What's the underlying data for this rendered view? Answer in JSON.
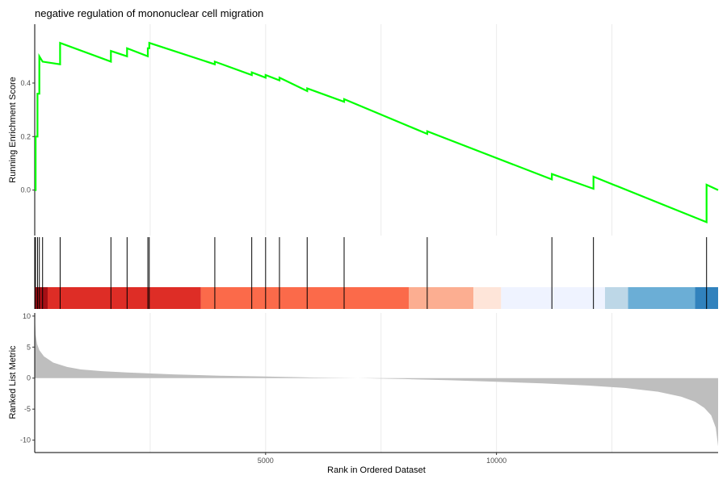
{
  "chart_data": {
    "type": "line",
    "title": "negative regulation of mononuclear cell migration",
    "xlabel": "Rank in Ordered Dataset",
    "xlim": [
      0,
      14800
    ],
    "xticks": [
      5000,
      10000
    ],
    "grid": "vertical gridlines at 2500-step positions",
    "colors": {
      "running_score": "#00ff00",
      "hit_line": "#000000",
      "metric_fill": "#bebebe",
      "grid": "#ebebeb"
    },
    "running_score": {
      "ylabel": "Running Enrichment Score",
      "ylim": [
        -0.17,
        0.62
      ],
      "yticks": [
        0.0,
        0.2,
        0.4
      ],
      "x": [
        0,
        20,
        20,
        60,
        60,
        100,
        100,
        170,
        170,
        550,
        550,
        1650,
        1650,
        2000,
        2000,
        2450,
        2450,
        2480,
        2480,
        3900,
        3900,
        4700,
        4700,
        5000,
        5000,
        5300,
        5300,
        5900,
        5900,
        6700,
        6700,
        8500,
        8500,
        11200,
        11200,
        12100,
        12100,
        14550,
        14550,
        14800
      ],
      "y": [
        0.0,
        0.0,
        0.2,
        0.2,
        0.36,
        0.36,
        0.5,
        0.48,
        0.48,
        0.47,
        0.55,
        0.48,
        0.52,
        0.5,
        0.53,
        0.5,
        0.53,
        0.53,
        0.55,
        0.47,
        0.48,
        0.43,
        0.44,
        0.42,
        0.43,
        0.41,
        0.42,
        0.37,
        0.38,
        0.33,
        0.34,
        0.21,
        0.22,
        0.04,
        0.06,
        0.005,
        0.05,
        -0.12,
        0.02,
        0.0
      ]
    },
    "hits": [
      15,
      60,
      100,
      170,
      550,
      1650,
      2000,
      2450,
      2480,
      3900,
      4700,
      5000,
      5300,
      5900,
      6700,
      8500,
      11200,
      12100,
      14550
    ],
    "rank_bands": [
      {
        "start": 0,
        "end": 280,
        "color": "#a50f15"
      },
      {
        "start": 280,
        "end": 3600,
        "color": "#de2d26"
      },
      {
        "start": 3600,
        "end": 8100,
        "color": "#fb6a4a"
      },
      {
        "start": 8100,
        "end": 9500,
        "color": "#fcae91"
      },
      {
        "start": 9500,
        "end": 10100,
        "color": "#fee5d9"
      },
      {
        "start": 10100,
        "end": 12350,
        "color": "#eff3ff"
      },
      {
        "start": 12350,
        "end": 12850,
        "color": "#bdd7e7"
      },
      {
        "start": 12850,
        "end": 14300,
        "color": "#6baed6"
      },
      {
        "start": 14300,
        "end": 14800,
        "color": "#3182bd"
      }
    ],
    "ranked_metric": {
      "ylabel": "Ranked List Metric",
      "ylim": [
        -12,
        10.5
      ],
      "yticks": [
        10,
        5,
        0,
        -5,
        -10
      ],
      "x": [
        0,
        20,
        50,
        100,
        200,
        400,
        700,
        1000,
        1500,
        2000,
        3000,
        4000,
        5000,
        6000,
        7000,
        8000,
        9000,
        10000,
        11000,
        12000,
        12800,
        13500,
        14000,
        14300,
        14500,
        14650,
        14750,
        14800
      ],
      "y": [
        10.5,
        7.0,
        5.5,
        4.5,
        3.5,
        2.5,
        1.8,
        1.4,
        1.1,
        0.9,
        0.6,
        0.4,
        0.25,
        0.1,
        0.0,
        -0.15,
        -0.35,
        -0.6,
        -0.85,
        -1.2,
        -1.6,
        -2.2,
        -3.0,
        -3.8,
        -4.8,
        -6.0,
        -8.0,
        -11.0
      ]
    }
  }
}
